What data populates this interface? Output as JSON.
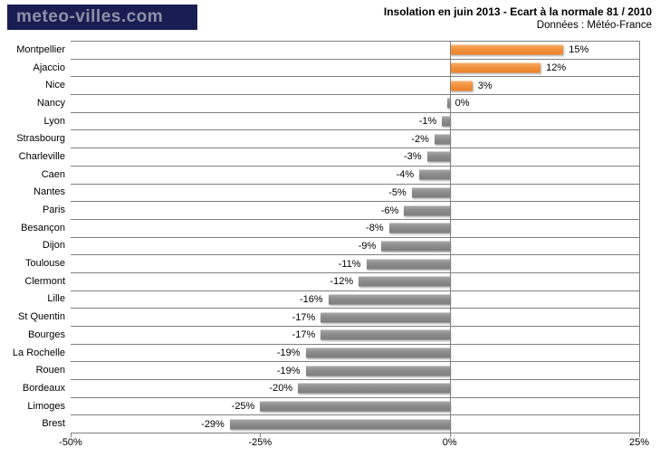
{
  "logo": {
    "text": "meteo-villes.com",
    "bg_color": "#1a1d52",
    "text_color": "#8e90a6"
  },
  "header": {
    "title": "Insolation en juin 2013 - Ecart à la normale 81 / 2010",
    "subtitle": "Données : Météo-France"
  },
  "chart_data": {
    "type": "bar",
    "orientation": "horizontal",
    "title": "Insolation en juin 2013 - Ecart à la normale 81 / 2010",
    "subtitle": "Données : Météo-France",
    "categories": [
      "Montpellier",
      "Ajaccio",
      "Nice",
      "Nancy",
      "Lyon",
      "Strasbourg",
      "Charleville",
      "Caen",
      "Nantes",
      "Paris",
      "Besançon",
      "Dijon",
      "Toulouse",
      "Clermont",
      "Lille",
      "St Quentin",
      "Bourges",
      "La Rochelle",
      "Rouen",
      "Bordeaux",
      "Limoges",
      "Brest"
    ],
    "values": [
      15,
      12,
      3,
      0,
      -1,
      -2,
      -3,
      -4,
      -5,
      -6,
      -8,
      -9,
      -11,
      -12,
      -16,
      -17,
      -17,
      -19,
      -19,
      -20,
      -25,
      -29
    ],
    "value_labels": [
      "15%",
      "12%",
      "3%",
      "0%",
      "-1%",
      "-2%",
      "-3%",
      "-4%",
      "-5%",
      "-6%",
      "-8%",
      "-9%",
      "-11%",
      "-12%",
      "-16%",
      "-17%",
      "-17%",
      "-19%",
      "-19%",
      "-20%",
      "-25%",
      "-29%"
    ],
    "xlabel": "",
    "ylabel": "",
    "xlim": [
      -50,
      25
    ],
    "x_tick_values": [
      -50,
      -25,
      0,
      25
    ],
    "x_tick_labels": [
      "-50%",
      "-25%",
      "0%",
      "25%"
    ],
    "grid": true,
    "legend_position": "none",
    "positive_color": "#f0923d",
    "negative_color": "#8c8c8c",
    "gridline_color": "#808080"
  }
}
